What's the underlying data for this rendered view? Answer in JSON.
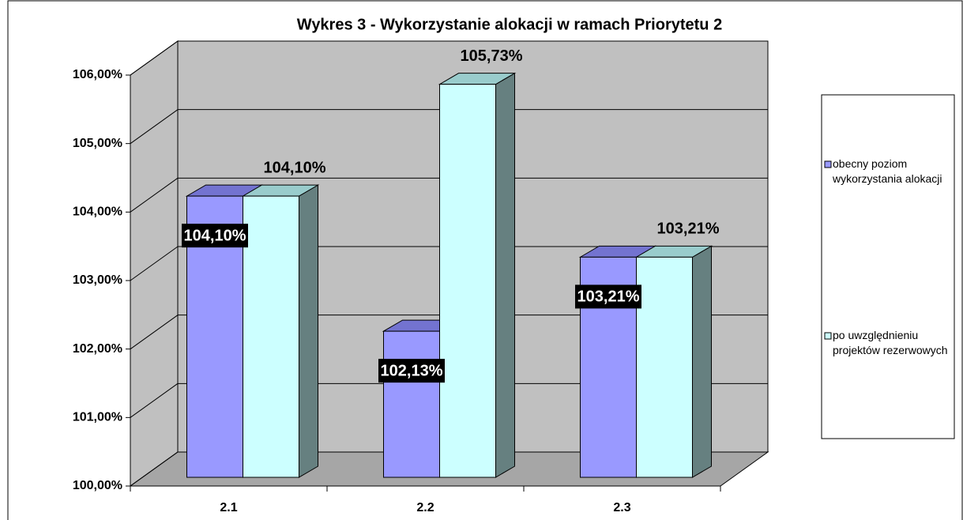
{
  "chart_data": {
    "type": "bar3d",
    "title": "Wykres 3 - Wykorzystanie alokacji w ramach Priorytetu 2",
    "categories": [
      "2.1",
      "2.2",
      "2.3"
    ],
    "series": [
      {
        "name": "obecny poziom wykorzystania alokacji",
        "color": "#9999ff",
        "values": [
          104.1,
          102.13,
          103.21
        ],
        "value_labels": [
          "104,10%",
          "102,13%",
          "103,21%"
        ]
      },
      {
        "name": "po uwzględnieniu projektów rezerwowych",
        "color": "#ccffff",
        "values": [
          104.1,
          105.73,
          103.21
        ],
        "value_labels": [
          "104,10%",
          "105,73%",
          "103,21%"
        ]
      }
    ],
    "ylim": [
      100,
      106
    ],
    "yticks": [
      {
        "value": 100,
        "label": "100,00%"
      },
      {
        "value": 101,
        "label": "101,00%"
      },
      {
        "value": 102,
        "label": "102,00%"
      },
      {
        "value": 103,
        "label": "103,00%"
      },
      {
        "value": 104,
        "label": "104,00%"
      },
      {
        "value": 105,
        "label": "105,00%"
      },
      {
        "value": 106,
        "label": "106,00%"
      }
    ],
    "grid": true
  }
}
